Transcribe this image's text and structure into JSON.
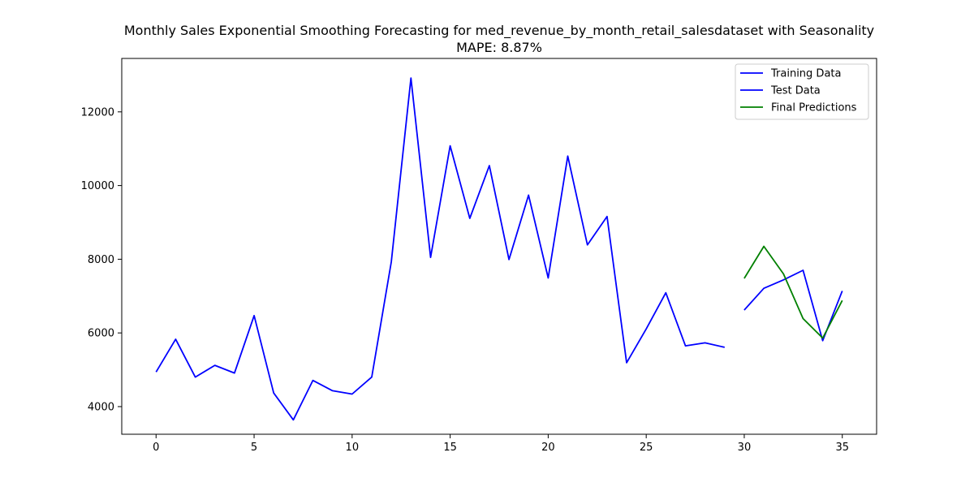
{
  "chart_data": {
    "type": "line",
    "title": "Monthly Sales Exponential Smoothing Forecasting for med_revenue_by_month_retail_salesdataset with Seasonality",
    "subtitle": "MAPE: 8.87%",
    "xlabel": "",
    "ylabel": "",
    "xlim": [
      -1.75,
      36.75
    ],
    "ylim": [
      3250,
      13450
    ],
    "x_ticks": [
      0,
      5,
      10,
      15,
      20,
      25,
      30,
      35
    ],
    "y_ticks": [
      4000,
      6000,
      8000,
      10000,
      12000
    ],
    "grid": false,
    "legend_position": "top-right",
    "series": [
      {
        "name": "Training Data",
        "color": "#0000ff",
        "x": [
          0,
          1,
          2,
          3,
          4,
          5,
          6,
          7,
          8,
          9,
          10,
          11,
          12,
          13,
          14,
          15,
          16,
          17,
          18,
          19,
          20,
          21,
          22,
          23,
          24,
          25,
          26,
          27,
          28,
          29
        ],
        "values": [
          4940,
          5830,
          4800,
          5120,
          4910,
          6470,
          4370,
          3640,
          4710,
          4430,
          4340,
          4800,
          7930,
          12920,
          8050,
          11080,
          9110,
          10540,
          7990,
          9740,
          7490,
          10800,
          8390,
          9160,
          5190,
          6110,
          7090,
          5650,
          5730,
          5610
        ]
      },
      {
        "name": "Test Data",
        "color": "#0000ff",
        "x": [
          30,
          31,
          32,
          33,
          34,
          35
        ],
        "values": [
          6620,
          7210,
          7440,
          7700,
          5790,
          7140
        ]
      },
      {
        "name": "Final Predictions",
        "color": "#008000",
        "x": [
          30,
          31,
          32,
          33,
          34,
          35
        ],
        "values": [
          7480,
          8350,
          7600,
          6390,
          5860,
          6880
        ]
      }
    ]
  }
}
